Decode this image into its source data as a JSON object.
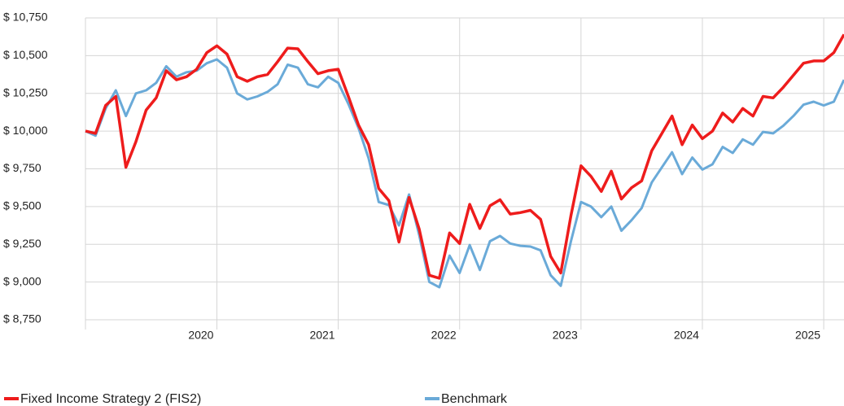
{
  "chart_data": {
    "type": "line",
    "x": [
      2018.917,
      2019,
      2019.083,
      2019.167,
      2019.25,
      2019.333,
      2019.417,
      2019.5,
      2019.583,
      2019.667,
      2019.75,
      2019.833,
      2019.917,
      2020,
      2020.083,
      2020.167,
      2020.25,
      2020.333,
      2020.417,
      2020.5,
      2020.583,
      2020.667,
      2020.75,
      2020.833,
      2020.917,
      2021,
      2021.083,
      2021.167,
      2021.25,
      2021.333,
      2021.417,
      2021.5,
      2021.583,
      2021.667,
      2021.75,
      2021.833,
      2021.917,
      2022,
      2022.083,
      2022.167,
      2022.25,
      2022.333,
      2022.417,
      2022.5,
      2022.583,
      2022.667,
      2022.75,
      2022.833,
      2022.917,
      2023,
      2023.083,
      2023.167,
      2023.25,
      2023.333,
      2023.417,
      2023.5,
      2023.583,
      2023.667,
      2023.75,
      2023.833,
      2023.917,
      2024,
      2024.083,
      2024.167,
      2024.25,
      2024.333,
      2024.417,
      2024.5,
      2024.583,
      2024.667,
      2024.75,
      2024.833,
      2024.917,
      2025,
      2025.083,
      2025.167
    ],
    "series": [
      {
        "name": "Fixed Income Strategy 2 (FIS2)",
        "color": "#ee1c1c",
        "values": [
          10000,
          9985,
          10170,
          10230,
          9760,
          9930,
          10140,
          10220,
          10400,
          10340,
          10360,
          10410,
          10520,
          10565,
          10510,
          10360,
          10330,
          10360,
          10375,
          10460,
          10550,
          10545,
          10460,
          10380,
          10400,
          10410,
          10230,
          10040,
          9910,
          9620,
          9540,
          9265,
          9560,
          9350,
          9045,
          9025,
          9325,
          9255,
          9515,
          9355,
          9505,
          9545,
          9450,
          9460,
          9475,
          9415,
          9170,
          9060,
          9440,
          9770,
          9700,
          9600,
          9735,
          9550,
          9625,
          9670,
          9870,
          9985,
          10100,
          9910,
          10040,
          9950,
          10000,
          10120,
          10060,
          10150,
          10100,
          10230,
          10220,
          10290,
          10370,
          10450,
          10465,
          10465,
          10520,
          10640
        ]
      },
      {
        "name": "Benchmark",
        "color": "#6aaad8",
        "values": [
          10000,
          9970,
          10150,
          10270,
          10100,
          10250,
          10270,
          10320,
          10430,
          10360,
          10390,
          10400,
          10450,
          10475,
          10420,
          10250,
          10210,
          10230,
          10260,
          10310,
          10440,
          10420,
          10310,
          10290,
          10360,
          10320,
          10180,
          10020,
          9820,
          9530,
          9510,
          9375,
          9580,
          9310,
          9000,
          8965,
          9175,
          9060,
          9245,
          9080,
          9270,
          9305,
          9255,
          9240,
          9235,
          9210,
          9045,
          8975,
          9270,
          9530,
          9500,
          9430,
          9500,
          9340,
          9410,
          9490,
          9660,
          9760,
          9860,
          9715,
          9825,
          9745,
          9780,
          9895,
          9855,
          9945,
          9910,
          9995,
          9985,
          10035,
          10100,
          10175,
          10195,
          10170,
          10195,
          10340
        ]
      }
    ],
    "xlim": [
      2018.917,
      2025.167
    ],
    "xticks": [
      2020,
      2021,
      2022,
      2023,
      2024,
      2025
    ],
    "ylim": [
      8750,
      10750
    ],
    "yticks": [
      {
        "value": 8750,
        "label": "$ 8,750"
      },
      {
        "value": 9000,
        "label": "$ 9,000"
      },
      {
        "value": 9250,
        "label": "$ 9,250"
      },
      {
        "value": 9500,
        "label": "$ 9,500"
      },
      {
        "value": 9750,
        "label": "$ 9,750"
      },
      {
        "value": 10000,
        "label": "$ 10,000"
      },
      {
        "value": 10250,
        "label": "$ 10,250"
      },
      {
        "value": 10500,
        "label": "$ 10,500"
      },
      {
        "value": 10750,
        "label": "$ 10,750"
      }
    ],
    "grid": true,
    "legend": "bottom"
  }
}
